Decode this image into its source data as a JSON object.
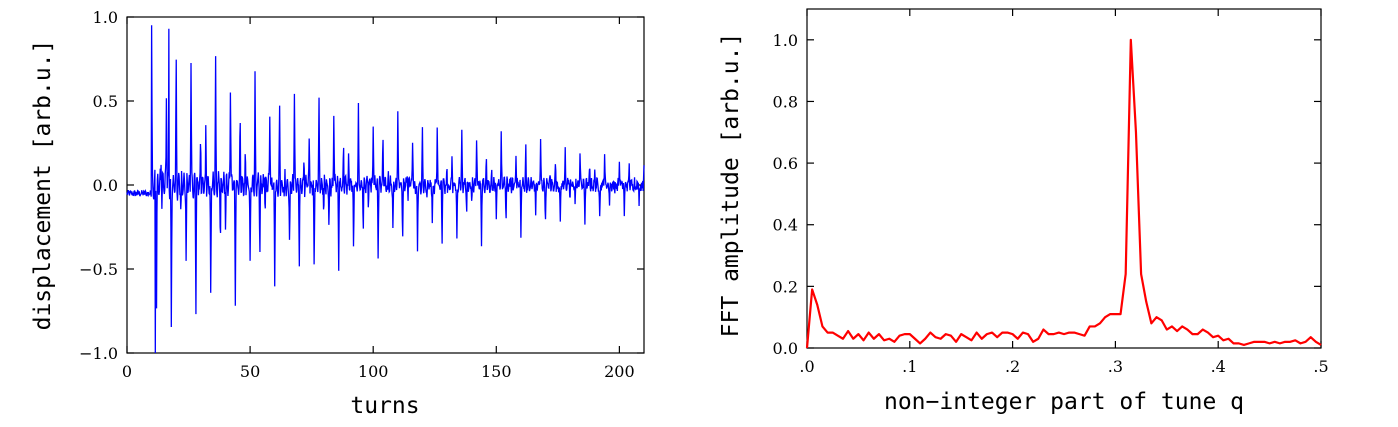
{
  "chart_data": [
    {
      "type": "line",
      "title": "",
      "xlabel": "turns",
      "ylabel": "displacement [arb.u.]",
      "xlim": [
        0,
        210
      ],
      "ylim": [
        -1.0,
        1.0
      ],
      "xticks": [
        0,
        50,
        100,
        150,
        200
      ],
      "xtick_labels": [
        "0",
        "50",
        "100",
        "150",
        "200"
      ],
      "yticks": [
        -1.0,
        -0.5,
        0.0,
        0.5,
        1.0
      ],
      "ytick_labels": [
        "−1.0",
        "−0.5",
        "0.0",
        "0.5",
        "1.0"
      ],
      "grid": false,
      "line_color": "#0000ff",
      "signal": {
        "start_turn": 0,
        "end_turn": 210,
        "kick_turn": 10,
        "samples_per_turn": 6,
        "tune": 0.31,
        "pre_kick_offset": -0.05,
        "pre_kick_noise": 0.02,
        "peak_positive": 0.93,
        "peak_negative": -1.0,
        "final_amplitude": 0.13,
        "envelope_points": [
          [
            10,
            0.92
          ],
          [
            20,
            0.8
          ],
          [
            50,
            0.62
          ],
          [
            100,
            0.42
          ],
          [
            150,
            0.3
          ],
          [
            200,
            0.17
          ],
          [
            210,
            0.13
          ]
        ]
      }
    },
    {
      "type": "line",
      "title": "",
      "xlabel": "non−integer part of tune q",
      "ylabel": "FFT amplitude [arb.u.]",
      "xlim": [
        0,
        0.5
      ],
      "ylim": [
        0,
        1.1
      ],
      "xticks": [
        0,
        0.1,
        0.2,
        0.3,
        0.4,
        0.5
      ],
      "xtick_labels": [
        ".0",
        ".1",
        ".2",
        ".3",
        ".4",
        ".5"
      ],
      "yticks": [
        0,
        0.2,
        0.4,
        0.6,
        0.8,
        1.0
      ],
      "ytick_labels": [
        "0.0",
        "0.2",
        "0.4",
        "0.6",
        "0.8",
        "1.0"
      ],
      "grid": false,
      "line_color": "#ff0000",
      "x": [
        0.0,
        0.005,
        0.01,
        0.015,
        0.02,
        0.025,
        0.03,
        0.035,
        0.04,
        0.045,
        0.05,
        0.055,
        0.06,
        0.065,
        0.07,
        0.075,
        0.08,
        0.085,
        0.09,
        0.095,
        0.1,
        0.105,
        0.11,
        0.115,
        0.12,
        0.125,
        0.13,
        0.135,
        0.14,
        0.145,
        0.15,
        0.155,
        0.16,
        0.165,
        0.17,
        0.175,
        0.18,
        0.185,
        0.19,
        0.195,
        0.2,
        0.205,
        0.21,
        0.215,
        0.22,
        0.225,
        0.23,
        0.235,
        0.24,
        0.245,
        0.25,
        0.255,
        0.26,
        0.265,
        0.27,
        0.275,
        0.28,
        0.285,
        0.29,
        0.295,
        0.3,
        0.305,
        0.31,
        0.315,
        0.32,
        0.325,
        0.33,
        0.335,
        0.34,
        0.345,
        0.35,
        0.355,
        0.36,
        0.365,
        0.37,
        0.375,
        0.38,
        0.385,
        0.39,
        0.395,
        0.4,
        0.405,
        0.41,
        0.415,
        0.42,
        0.425,
        0.43,
        0.435,
        0.44,
        0.445,
        0.45,
        0.455,
        0.46,
        0.465,
        0.47,
        0.475,
        0.48,
        0.485,
        0.49,
        0.495,
        0.5
      ],
      "y": [
        0.0,
        0.19,
        0.14,
        0.07,
        0.05,
        0.05,
        0.04,
        0.03,
        0.055,
        0.03,
        0.045,
        0.025,
        0.05,
        0.03,
        0.045,
        0.025,
        0.03,
        0.02,
        0.04,
        0.045,
        0.045,
        0.03,
        0.015,
        0.03,
        0.05,
        0.035,
        0.03,
        0.045,
        0.04,
        0.02,
        0.045,
        0.035,
        0.025,
        0.05,
        0.03,
        0.045,
        0.05,
        0.035,
        0.05,
        0.05,
        0.045,
        0.03,
        0.05,
        0.045,
        0.02,
        0.03,
        0.06,
        0.045,
        0.045,
        0.05,
        0.045,
        0.05,
        0.05,
        0.045,
        0.04,
        0.07,
        0.07,
        0.08,
        0.1,
        0.11,
        0.11,
        0.11,
        0.24,
        1.0,
        0.7,
        0.24,
        0.15,
        0.08,
        0.1,
        0.09,
        0.06,
        0.07,
        0.055,
        0.07,
        0.06,
        0.045,
        0.045,
        0.06,
        0.05,
        0.035,
        0.04,
        0.025,
        0.03,
        0.015,
        0.015,
        0.01,
        0.015,
        0.02,
        0.02,
        0.02,
        0.015,
        0.02,
        0.015,
        0.02,
        0.02,
        0.025,
        0.015,
        0.02,
        0.035,
        0.02,
        0.01
      ]
    }
  ]
}
